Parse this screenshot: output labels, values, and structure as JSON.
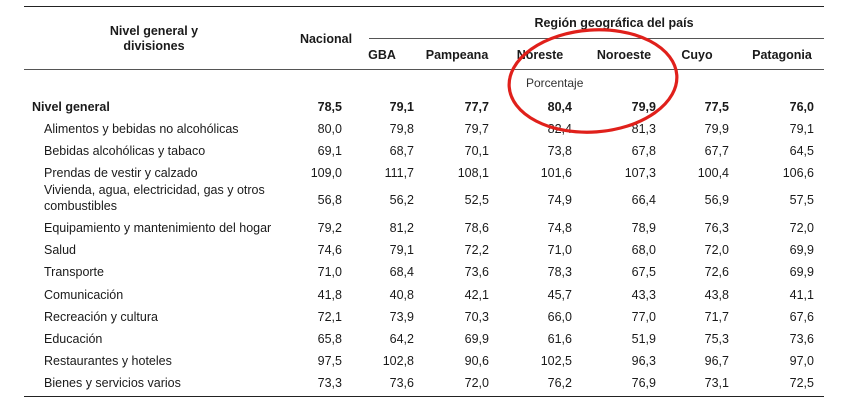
{
  "header": {
    "row_header": "Nivel general y divisiones",
    "national": "Nacional",
    "region_group": "Región geográfica del país",
    "regions": [
      "GBA",
      "Pampeana",
      "Noreste",
      "Noroeste",
      "Cuyo",
      "Patagonia"
    ],
    "unit": "Porcentaje"
  },
  "rows": [
    {
      "label": "Nivel general",
      "bold": true,
      "values": [
        "78,5",
        "79,1",
        "77,7",
        "80,4",
        "79,9",
        "77,5",
        "76,0"
      ]
    },
    {
      "label": "Alimentos y bebidas no alcohólicas",
      "values": [
        "80,0",
        "79,8",
        "79,7",
        "82,4",
        "81,3",
        "79,9",
        "79,1"
      ]
    },
    {
      "label": "Bebidas alcohólicas y tabaco",
      "values": [
        "69,1",
        "68,7",
        "70,1",
        "73,8",
        "67,8",
        "67,7",
        "64,5"
      ]
    },
    {
      "label": "Prendas de vestir y calzado",
      "values": [
        "109,0",
        "111,7",
        "108,1",
        "101,6",
        "107,3",
        "100,4",
        "106,6"
      ]
    },
    {
      "label": "Vivienda, agua, electricidad, gas y otros combustibles",
      "values": [
        "56,8",
        "56,2",
        "52,5",
        "74,9",
        "66,4",
        "56,9",
        "57,5"
      ]
    },
    {
      "label": "Equipamiento y mantenimiento del hogar",
      "values": [
        "79,2",
        "81,2",
        "78,6",
        "74,8",
        "78,9",
        "76,3",
        "72,0"
      ]
    },
    {
      "label": "Salud",
      "values": [
        "74,6",
        "79,1",
        "72,2",
        "71,0",
        "68,0",
        "72,0",
        "69,9"
      ]
    },
    {
      "label": "Transporte",
      "values": [
        "71,0",
        "68,4",
        "73,6",
        "78,3",
        "67,5",
        "72,6",
        "69,9"
      ]
    },
    {
      "label": "Comunicación",
      "values": [
        "41,8",
        "40,8",
        "42,1",
        "45,7",
        "43,3",
        "43,8",
        "41,1"
      ]
    },
    {
      "label": "Recreación y cultura",
      "values": [
        "72,1",
        "73,9",
        "70,3",
        "66,0",
        "77,0",
        "71,7",
        "67,6"
      ]
    },
    {
      "label": "Educación",
      "values": [
        "65,8",
        "64,2",
        "69,9",
        "61,6",
        "51,9",
        "75,3",
        "73,6"
      ]
    },
    {
      "label": "Restaurantes y hoteles",
      "values": [
        "97,5",
        "102,8",
        "90,6",
        "102,5",
        "96,3",
        "96,7",
        "97,0"
      ]
    },
    {
      "label": "Bienes y servicios varios",
      "values": [
        "73,3",
        "73,6",
        "72,0",
        "76,2",
        "76,9",
        "73,1",
        "72,5"
      ]
    }
  ],
  "annotation": {
    "shape": "ellipse",
    "color": "#e0201b",
    "highlights": [
      "Noreste",
      "Noroeste"
    ]
  }
}
